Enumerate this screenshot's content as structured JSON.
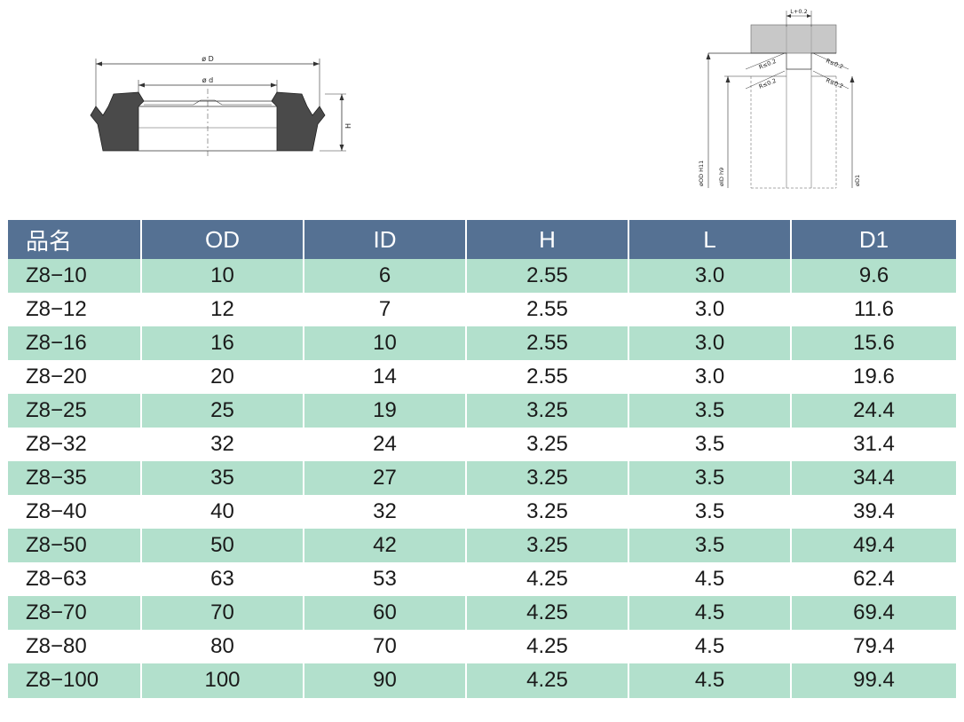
{
  "diagram": {
    "seal": {
      "label_D": "ø D",
      "label_d": "ø d",
      "label_H": "H"
    },
    "groove": {
      "label_L": "L+0.2",
      "label_r1": "R≤0.2",
      "label_r2": "R≤0.2",
      "label_r3": "R≤0.2",
      "label_r4": "R≤0.2",
      "label_OD": "øOD H11",
      "label_ID": "øID h9",
      "label_D1": "øD1"
    }
  },
  "table": {
    "headers": [
      "品名",
      "OD",
      "ID",
      "H",
      "L",
      "D1"
    ],
    "rows": [
      [
        "Z8−10",
        "10",
        "6",
        "2.55",
        "3.0",
        "9.6"
      ],
      [
        "Z8−12",
        "12",
        "7",
        "2.55",
        "3.0",
        "11.6"
      ],
      [
        "Z8−16",
        "16",
        "10",
        "2.55",
        "3.0",
        "15.6"
      ],
      [
        "Z8−20",
        "20",
        "14",
        "2.55",
        "3.0",
        "19.6"
      ],
      [
        "Z8−25",
        "25",
        "19",
        "3.25",
        "3.5",
        "24.4"
      ],
      [
        "Z8−32",
        "32",
        "24",
        "3.25",
        "3.5",
        "31.4"
      ],
      [
        "Z8−35",
        "35",
        "27",
        "3.25",
        "3.5",
        "34.4"
      ],
      [
        "Z8−40",
        "40",
        "32",
        "3.25",
        "3.5",
        "39.4"
      ],
      [
        "Z8−50",
        "50",
        "42",
        "3.25",
        "3.5",
        "49.4"
      ],
      [
        "Z8−63",
        "63",
        "53",
        "4.25",
        "4.5",
        "62.4"
      ],
      [
        "Z8−70",
        "70",
        "60",
        "4.25",
        "4.5",
        "69.4"
      ],
      [
        "Z8−80",
        "80",
        "70",
        "4.25",
        "4.5",
        "79.4"
      ],
      [
        "Z8−100",
        "100",
        "90",
        "4.25",
        "4.5",
        "99.4"
      ]
    ]
  },
  "colors": {
    "header_bg": "#557193",
    "stripe_bg": "#b2e0cc",
    "seal_fill": "#4a4a4a"
  }
}
